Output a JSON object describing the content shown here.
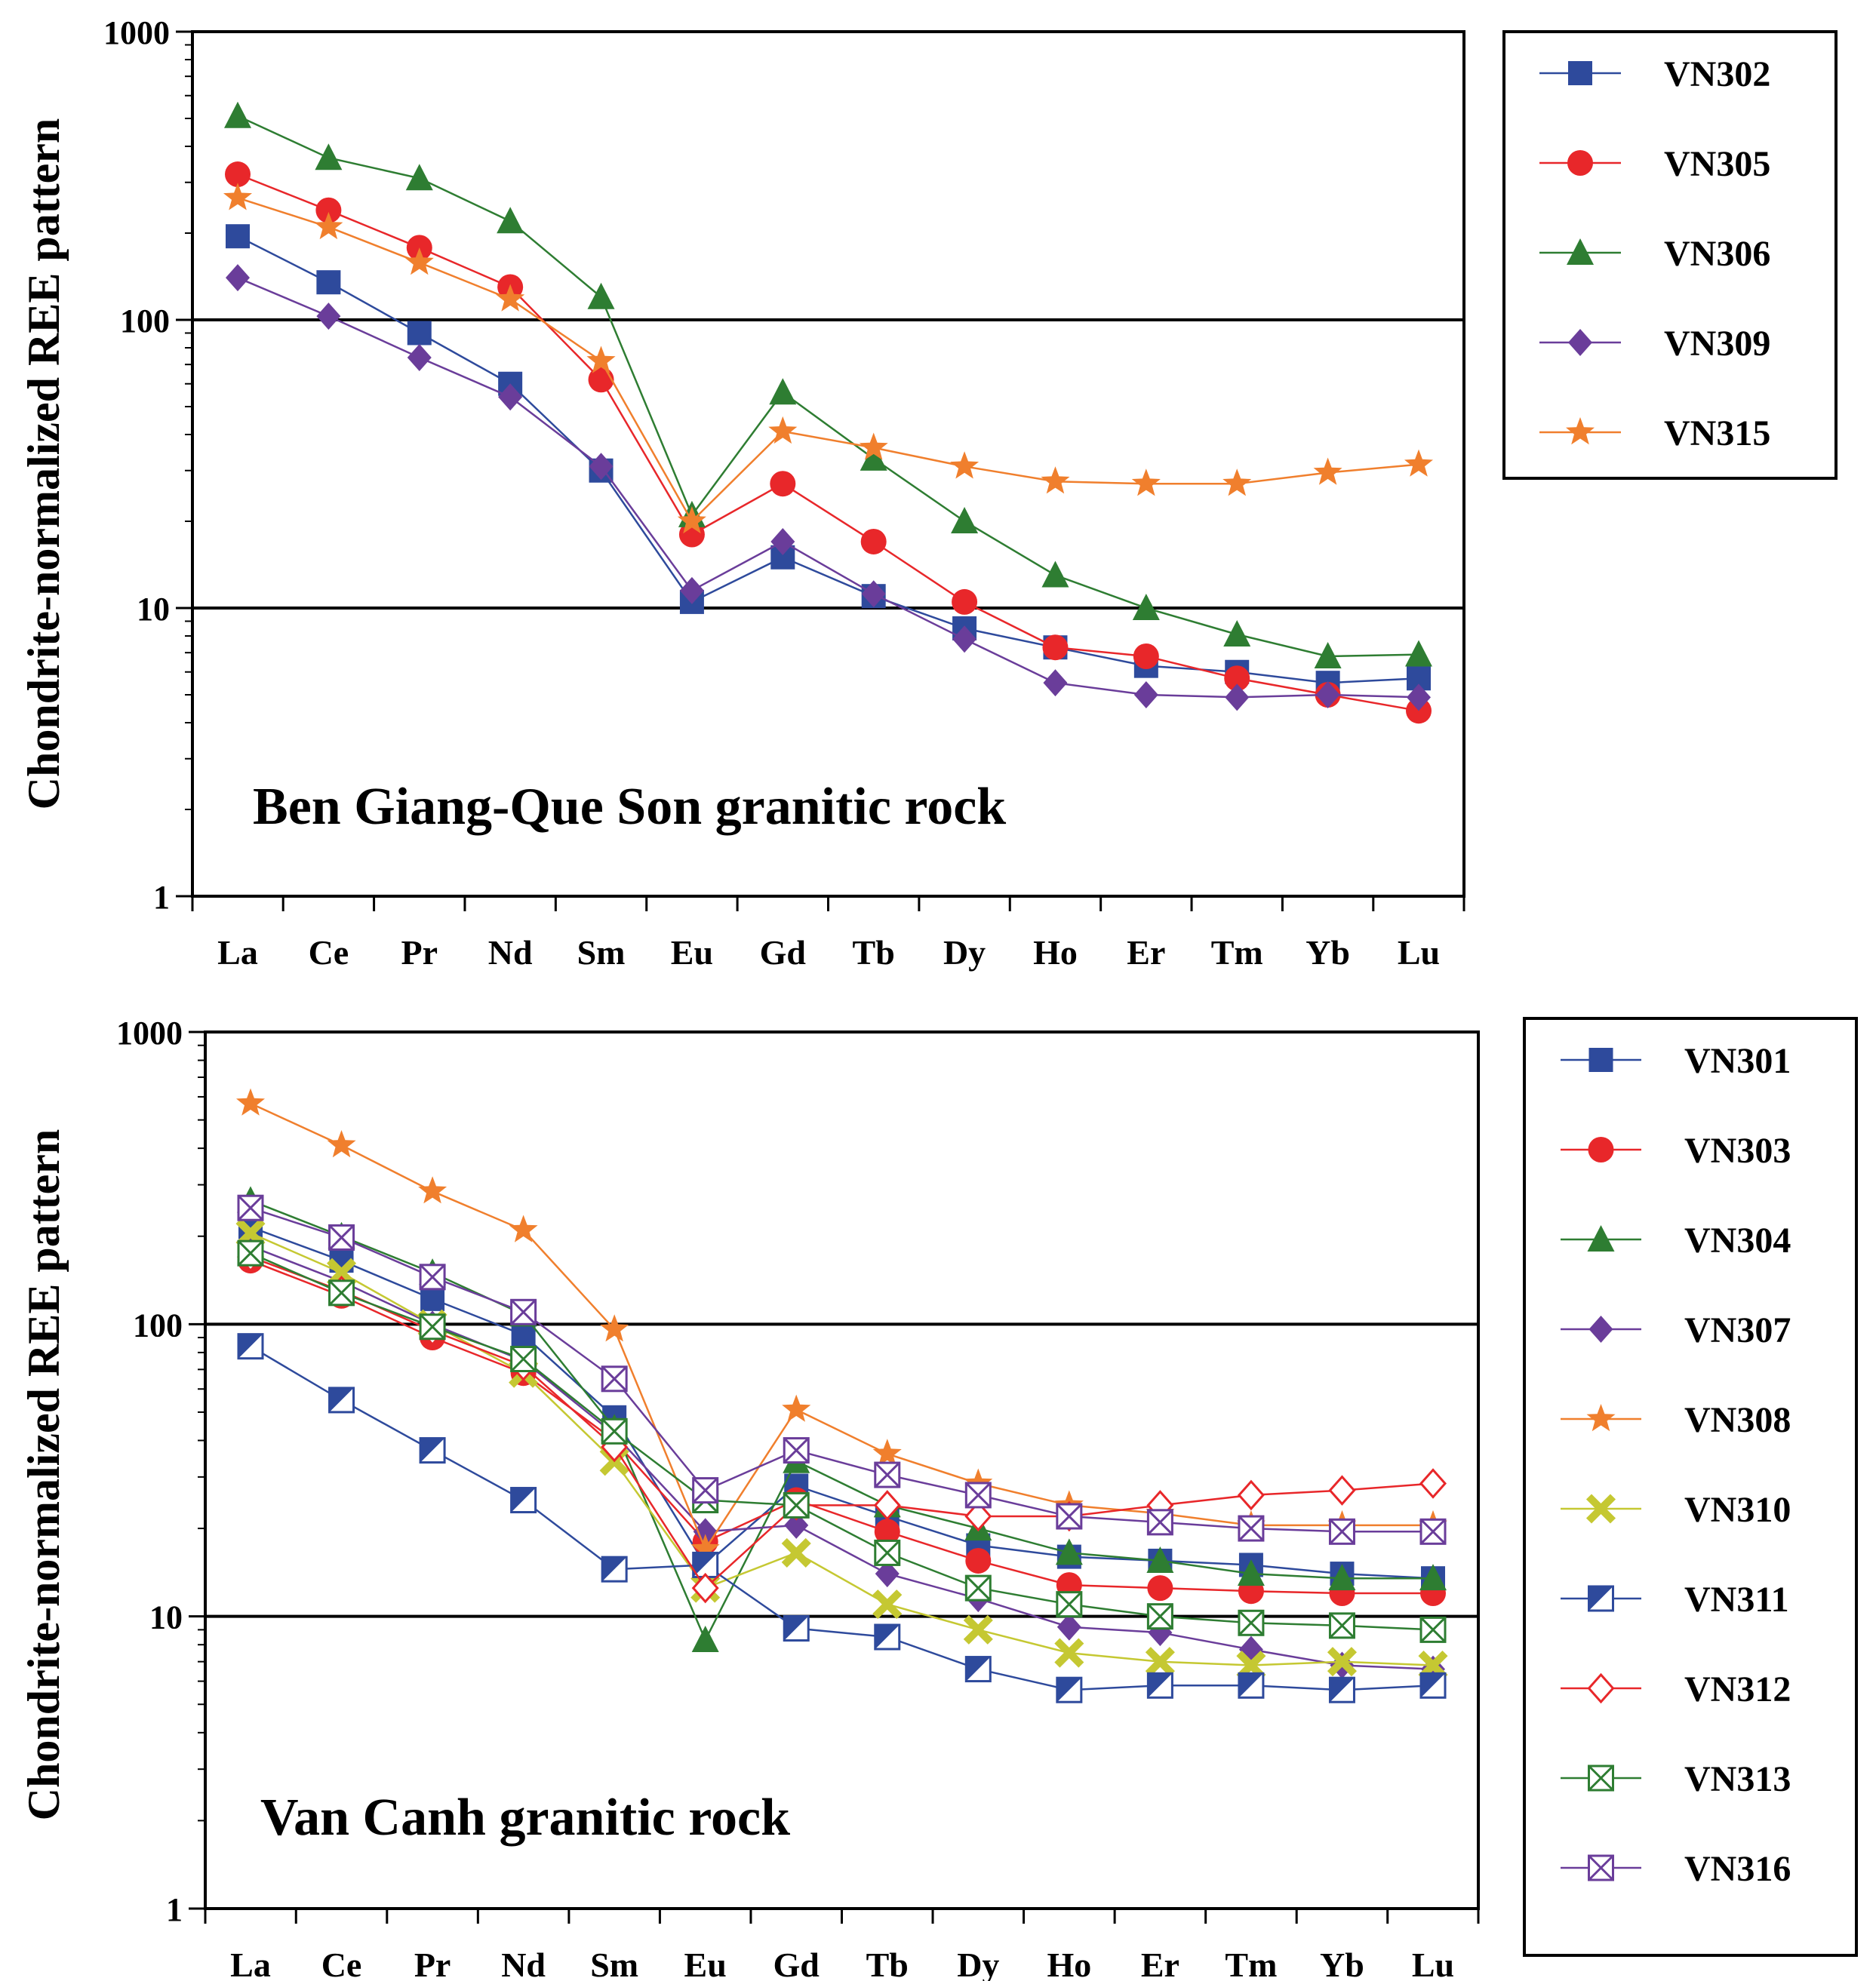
{
  "chart_data": [
    {
      "type": "line",
      "title": "Ben Giang-Que Son granitic rock",
      "ylabel": "Chondrite-normalized REE pattern",
      "xlabel": "",
      "yscale": "log",
      "ylim": [
        1,
        1000
      ],
      "yticks": [
        "1",
        "10",
        "100",
        "1000"
      ],
      "gridlines_y": [
        10,
        100
      ],
      "legend_position": "right",
      "categories": [
        "La",
        "Ce",
        "Pr",
        "Nd",
        "Sm",
        "Eu",
        "Gd",
        "Tb",
        "Dy",
        "Ho",
        "Er",
        "Tm",
        "Yb",
        "Lu"
      ],
      "series": [
        {
          "name": "VN302",
          "color": "#2e4a9c",
          "marker": "square",
          "values": [
            195,
            135,
            90,
            60,
            30,
            10.5,
            15,
            11,
            8.5,
            7.3,
            6.3,
            6.0,
            5.5,
            5.7
          ]
        },
        {
          "name": "VN305",
          "color": "#e8272a",
          "marker": "circle",
          "values": [
            320,
            240,
            178,
            130,
            62,
            18,
            27,
            17,
            10.5,
            7.3,
            6.8,
            5.7,
            5.0,
            4.4
          ]
        },
        {
          "name": "VN306",
          "color": "#2e7d32",
          "marker": "triangle",
          "values": [
            510,
            365,
            310,
            220,
            120,
            21,
            56,
            33,
            20,
            13,
            10,
            8.1,
            6.8,
            6.9
          ]
        },
        {
          "name": "VN309",
          "color": "#6a3d9a",
          "marker": "diamond",
          "values": [
            140,
            103,
            74,
            54,
            31,
            11.5,
            17,
            11.2,
            7.8,
            5.5,
            5.0,
            4.9,
            5.0,
            4.9
          ]
        },
        {
          "name": "VN315",
          "color": "#f07f2d",
          "marker": "star",
          "values": [
            265,
            210,
            158,
            118,
            72,
            20,
            41,
            36,
            31,
            27.5,
            27,
            27,
            29.5,
            31.5
          ]
        }
      ]
    },
    {
      "type": "line",
      "title": "Van Canh granitic rock",
      "ylabel": "Chondrite-normalized REE pattern",
      "xlabel": "",
      "yscale": "log",
      "ylim": [
        1,
        1000
      ],
      "yticks": [
        "1",
        "10",
        "100",
        "1000"
      ],
      "gridlines_y": [
        10,
        100
      ],
      "legend_position": "right",
      "categories": [
        "La",
        "Ce",
        "Pr",
        "Nd",
        "Sm",
        "Eu",
        "Gd",
        "Tb",
        "Dy",
        "Ho",
        "Er",
        "Tm",
        "Yb",
        "Lu"
      ],
      "series": [
        {
          "name": "VN301",
          "color": "#2e4a9c",
          "marker": "square",
          "values": [
            215,
            165,
            122,
            92,
            48,
            15,
            28,
            22,
            17.5,
            16,
            15.5,
            15,
            14,
            13.5
          ]
        },
        {
          "name": "VN303",
          "color": "#e8272a",
          "marker": "circle",
          "values": [
            165,
            125,
            90,
            68,
            40,
            18,
            25,
            19.5,
            15.5,
            12.8,
            12.5,
            12.2,
            12,
            12
          ]
        },
        {
          "name": "VN304",
          "color": "#2e7d32",
          "marker": "triangle",
          "values": [
            265,
            200,
            150,
            108,
            44,
            8.3,
            34,
            24,
            20,
            16.5,
            15.5,
            14,
            13.5,
            13.5
          ]
        },
        {
          "name": "VN307",
          "color": "#6a3d9a",
          "marker": "diamond",
          "values": [
            185,
            140,
            100,
            75,
            42,
            19.5,
            20.5,
            14,
            11.5,
            9.2,
            8.8,
            7.7,
            6.8,
            6.6
          ]
        },
        {
          "name": "VN308",
          "color": "#f07f2d",
          "marker": "star",
          "values": [
            570,
            410,
            285,
            210,
            96,
            17,
            51,
            36,
            28.5,
            24,
            22.5,
            20.5,
            20.5,
            20.5
          ]
        },
        {
          "name": "VN310",
          "color": "#c5c832",
          "marker": "x",
          "values": [
            205,
            150,
            100,
            68,
            34,
            12.5,
            16.5,
            11,
            9,
            7.5,
            7,
            6.8,
            7,
            6.8
          ]
        },
        {
          "name": "VN311",
          "color": "#2e4a9c",
          "marker": "half-square",
          "values": [
            84,
            55,
            37,
            25,
            14.5,
            15,
            9.1,
            8.5,
            6.6,
            5.6,
            5.8,
            5.8,
            5.6,
            5.8
          ]
        },
        {
          "name": "VN312",
          "color": "#e8272a",
          "marker": "open-diamond",
          "values": [
            170,
            130,
            95,
            72,
            38,
            12.5,
            24,
            24,
            22,
            22,
            24,
            26,
            27,
            28.5
          ]
        },
        {
          "name": "VN313",
          "color": "#2e7d32",
          "marker": "box-x",
          "values": [
            175,
            128,
            98,
            76,
            43,
            25,
            24,
            16.5,
            12.5,
            11,
            10,
            9.5,
            9.3,
            9
          ]
        },
        {
          "name": "VN316",
          "color": "#6a3d9a",
          "marker": "box-x",
          "values": [
            250,
            198,
            145,
            110,
            65,
            27,
            37,
            30.5,
            26,
            22,
            21,
            20,
            19.5,
            19.5
          ]
        }
      ]
    }
  ]
}
